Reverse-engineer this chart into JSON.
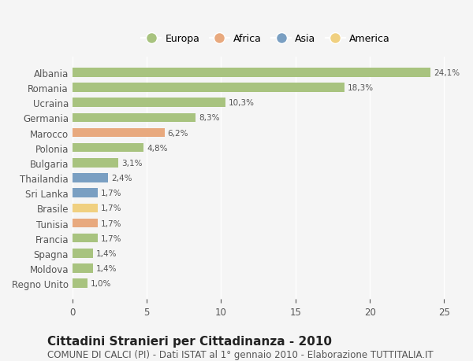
{
  "categories": [
    "Albania",
    "Romania",
    "Ucraina",
    "Germania",
    "Marocco",
    "Polonia",
    "Bulgaria",
    "Thailandia",
    "Sri Lanka",
    "Brasile",
    "Tunisia",
    "Francia",
    "Spagna",
    "Moldova",
    "Regno Unito"
  ],
  "values": [
    24.1,
    18.3,
    10.3,
    8.3,
    6.2,
    4.8,
    3.1,
    2.4,
    1.7,
    1.7,
    1.7,
    1.7,
    1.4,
    1.4,
    1.0
  ],
  "labels": [
    "24,1%",
    "18,3%",
    "10,3%",
    "8,3%",
    "6,2%",
    "4,8%",
    "3,1%",
    "2,4%",
    "1,7%",
    "1,7%",
    "1,7%",
    "1,7%",
    "1,4%",
    "1,4%",
    "1,0%"
  ],
  "continents": [
    "Europa",
    "Europa",
    "Europa",
    "Europa",
    "Africa",
    "Europa",
    "Europa",
    "Asia",
    "Asia",
    "America",
    "Africa",
    "Europa",
    "Europa",
    "Europa",
    "Europa"
  ],
  "colors": {
    "Europa": "#a8c37f",
    "Africa": "#e8a97e",
    "Asia": "#7a9fc2",
    "America": "#f0d080"
  },
  "legend_order": [
    "Europa",
    "Africa",
    "Asia",
    "America"
  ],
  "legend_colors": {
    "Europa": "#a8c37f",
    "Africa": "#e8a97e",
    "Asia": "#7a9fc2",
    "America": "#f0d080"
  },
  "xlim": [
    0,
    26
  ],
  "xticks": [
    0,
    5,
    10,
    15,
    20,
    25
  ],
  "background_color": "#f5f5f5",
  "title": "Cittadini Stranieri per Cittadinanza - 2010",
  "subtitle": "COMUNE DI CALCI (PI) - Dati ISTAT al 1° gennaio 2010 - Elaborazione TUTTITALIA.IT",
  "title_fontsize": 11,
  "subtitle_fontsize": 8.5,
  "bar_height": 0.6,
  "grid_color": "#ffffff",
  "axis_label_color": "#555555",
  "value_label_color": "#555555"
}
